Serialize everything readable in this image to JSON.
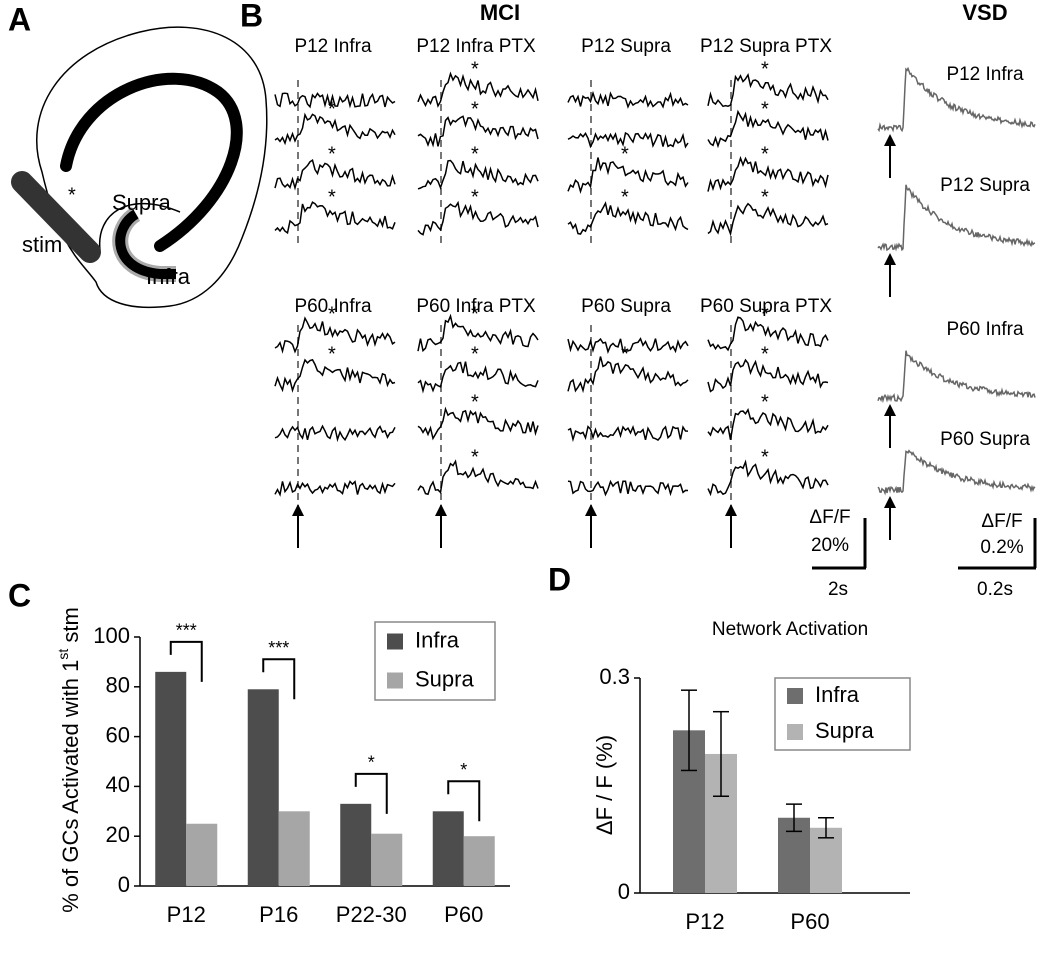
{
  "panel_a": {
    "label": "A",
    "stim": "stim",
    "supra": "Supra",
    "infra": "Infra"
  },
  "panel_b": {
    "label": "B",
    "mci_title": "MCI",
    "vsd_title": "VSD",
    "asterisk": "*",
    "mci": [
      {
        "title": "P12 Infra",
        "asterisks": [
          false,
          true,
          true,
          true
        ]
      },
      {
        "title": "P12 Infra PTX",
        "asterisks": [
          true,
          true,
          true,
          true
        ]
      },
      {
        "title": "P12 Supra",
        "asterisks": [
          false,
          false,
          true,
          true
        ]
      },
      {
        "title": "P12 Supra PTX",
        "asterisks": [
          true,
          true,
          true,
          true
        ]
      },
      {
        "title": "P60 Infra",
        "asterisks": [
          true,
          true,
          false,
          false
        ]
      },
      {
        "title": "P60 Infra PTX",
        "asterisks": [
          true,
          true,
          true,
          true
        ]
      },
      {
        "title": "P60 Supra",
        "asterisks": [
          false,
          true,
          false,
          false
        ]
      },
      {
        "title": "P60 Supra PTX",
        "asterisks": [
          true,
          true,
          true,
          true
        ]
      }
    ],
    "vsd": [
      "P12 Infra",
      "P12 Supra",
      "P60 Infra",
      "P60 Supra"
    ],
    "mci_scale": {
      "y_label": "ΔF/F",
      "y_value": "20%",
      "x_value": "2s"
    },
    "vsd_scale": {
      "y_label": "ΔF/F",
      "y_value": "0.2%",
      "x_value": "0.2s"
    }
  },
  "chart_data": [
    {
      "type": "bar",
      "panel_label": "C",
      "ylabel": "% of GCs Activated with 1",
      "ylabel_superscript": "st",
      "ylabel_suffix": " stm",
      "ylabel_note": "*",
      "categories": [
        "P12",
        "P16",
        "P22-30",
        "P60"
      ],
      "series": [
        {
          "name": "Infra",
          "color": "#4d4d4d",
          "values": [
            86,
            79,
            33,
            30
          ]
        },
        {
          "name": "Supra",
          "color": "#a6a6a6",
          "values": [
            25,
            30,
            21,
            20
          ]
        }
      ],
      "significance": [
        "***",
        "***",
        "*",
        "*"
      ],
      "ylim": [
        0,
        100
      ],
      "yticks": [
        0,
        20,
        40,
        60,
        80,
        100
      ],
      "legend": "upper right"
    },
    {
      "type": "bar",
      "panel_label": "D",
      "title": "Network Activation",
      "ylabel": "ΔF / F (%)",
      "categories": [
        "P12",
        "P60"
      ],
      "series": [
        {
          "name": "Infra",
          "color": "#6e6e6e",
          "values": [
            0.227,
            0.105
          ],
          "errors": [
            0.056,
            0.019
          ]
        },
        {
          "name": "Supra",
          "color": "#b3b3b3",
          "values": [
            0.194,
            0.091
          ],
          "errors": [
            0.059,
            0.014
          ]
        }
      ],
      "ylim": [
        0,
        0.3
      ],
      "yticks": [
        0,
        0.3
      ],
      "legend": "upper right"
    }
  ]
}
